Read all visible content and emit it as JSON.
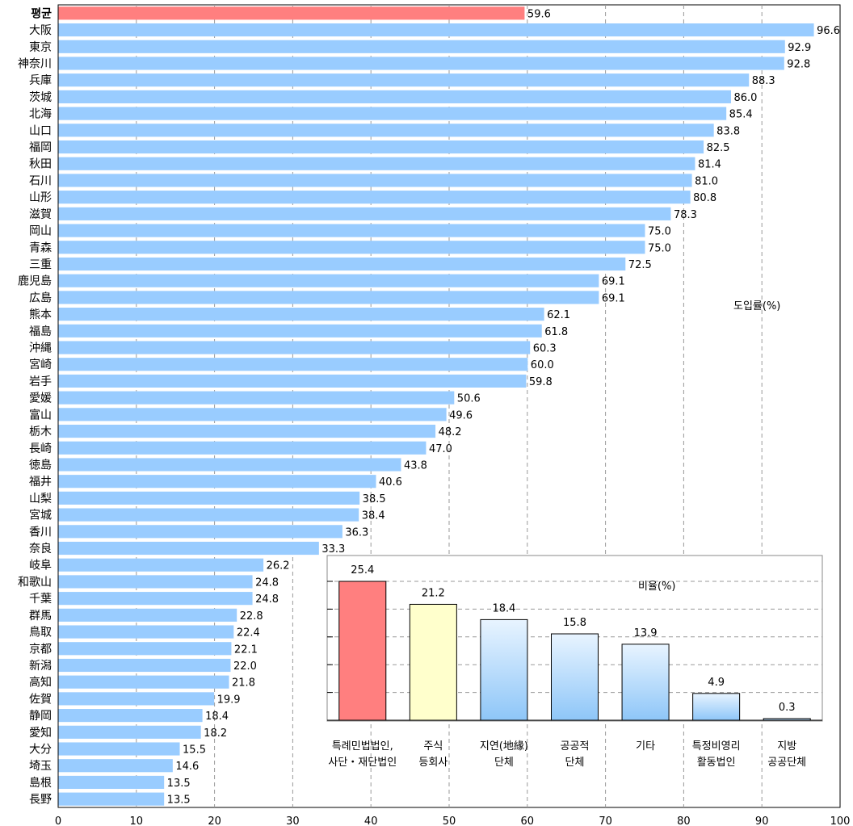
{
  "chart_data": [
    {
      "type": "bar",
      "orientation": "horizontal",
      "ylabel": "도입률(%)",
      "xlim": [
        0,
        100
      ],
      "x_ticks": [
        "0",
        "10",
        "20",
        "30",
        "40",
        "50",
        "60",
        "70",
        "80",
        "90",
        "100"
      ],
      "grid": "vertical dashed",
      "colors": {
        "highlight": "#ff7f7f",
        "bar": "#99ccff"
      },
      "categories": [
        "평균",
        "大阪",
        "東京",
        "神奈川",
        "兵庫",
        "茨城",
        "北海",
        "山口",
        "福岡",
        "秋田",
        "石川",
        "山形",
        "滋賀",
        "岡山",
        "青森",
        "三重",
        "鹿児島",
        "広島",
        "熊本",
        "福島",
        "沖縄",
        "宮崎",
        "岩手",
        "愛媛",
        "富山",
        "栃木",
        "長崎",
        "徳島",
        "福井",
        "山梨",
        "宮城",
        "香川",
        "奈良",
        "岐阜",
        "和歌山",
        "千葉",
        "群馬",
        "鳥取",
        "京都",
        "新潟",
        "高知",
        "佐賀",
        "静岡",
        "愛知",
        "大分",
        "埼玉",
        "島根",
        "長野"
      ],
      "values": [
        59.6,
        96.6,
        92.9,
        92.8,
        88.3,
        86.0,
        85.4,
        83.8,
        82.5,
        81.4,
        81.0,
        80.8,
        78.3,
        75.0,
        75.0,
        72.5,
        69.1,
        69.1,
        62.1,
        61.8,
        60.3,
        60.0,
        59.8,
        50.6,
        49.6,
        48.2,
        47.0,
        43.8,
        40.6,
        38.5,
        38.4,
        36.3,
        33.3,
        26.2,
        24.8,
        24.8,
        22.8,
        22.4,
        22.1,
        22.0,
        21.8,
        19.9,
        18.4,
        18.2,
        15.5,
        14.6,
        13.5,
        13.5
      ],
      "value_labels": [
        "59.6",
        "96.6",
        "92.9",
        "92.8",
        "88.3",
        "86.0",
        "85.4",
        "83.8",
        "82.5",
        "81.4",
        "81.0",
        "80.8",
        "78.3",
        "75.0",
        "75.0",
        "72.5",
        "69.1",
        "69.1",
        "62.1",
        "61.8",
        "60.3",
        "60.0",
        "59.8",
        "50.6",
        "49.6",
        "48.2",
        "47.0",
        "43.8",
        "40.6",
        "38.5",
        "38.4",
        "36.3",
        "33.3",
        "26.2",
        "24.8",
        "24.8",
        "22.8",
        "22.4",
        "22.1",
        "22.0",
        "21.8",
        "19.9",
        "18.4",
        "18.2",
        "15.5",
        "14.6",
        "13.5",
        "13.5"
      ],
      "highlight_index": 0
    },
    {
      "type": "bar",
      "ylabel": "비율(%)",
      "ylim": [
        0,
        25.4
      ],
      "grid": "horizontal dashed",
      "categories": [
        [
          "특례민법법인,",
          "사단・재단법인"
        ],
        [
          "주식",
          "등회사"
        ],
        [
          "지연(地緣)",
          "단체"
        ],
        [
          "공공적",
          "단체"
        ],
        [
          "기타"
        ],
        [
          "특정비영리",
          "활동법인"
        ],
        [
          "지방",
          "공공단체"
        ]
      ],
      "values": [
        25.4,
        21.2,
        18.4,
        15.8,
        13.9,
        4.9,
        0.3
      ],
      "value_labels": [
        "25.4",
        "21.2",
        "18.4",
        "15.8",
        "13.9",
        "4.9",
        "0.3"
      ],
      "colors": [
        "#ff7f7f",
        "#ffffcc",
        "gradient-blue",
        "gradient-blue",
        "gradient-blue",
        "gradient-blue",
        "gradient-blue"
      ]
    }
  ]
}
